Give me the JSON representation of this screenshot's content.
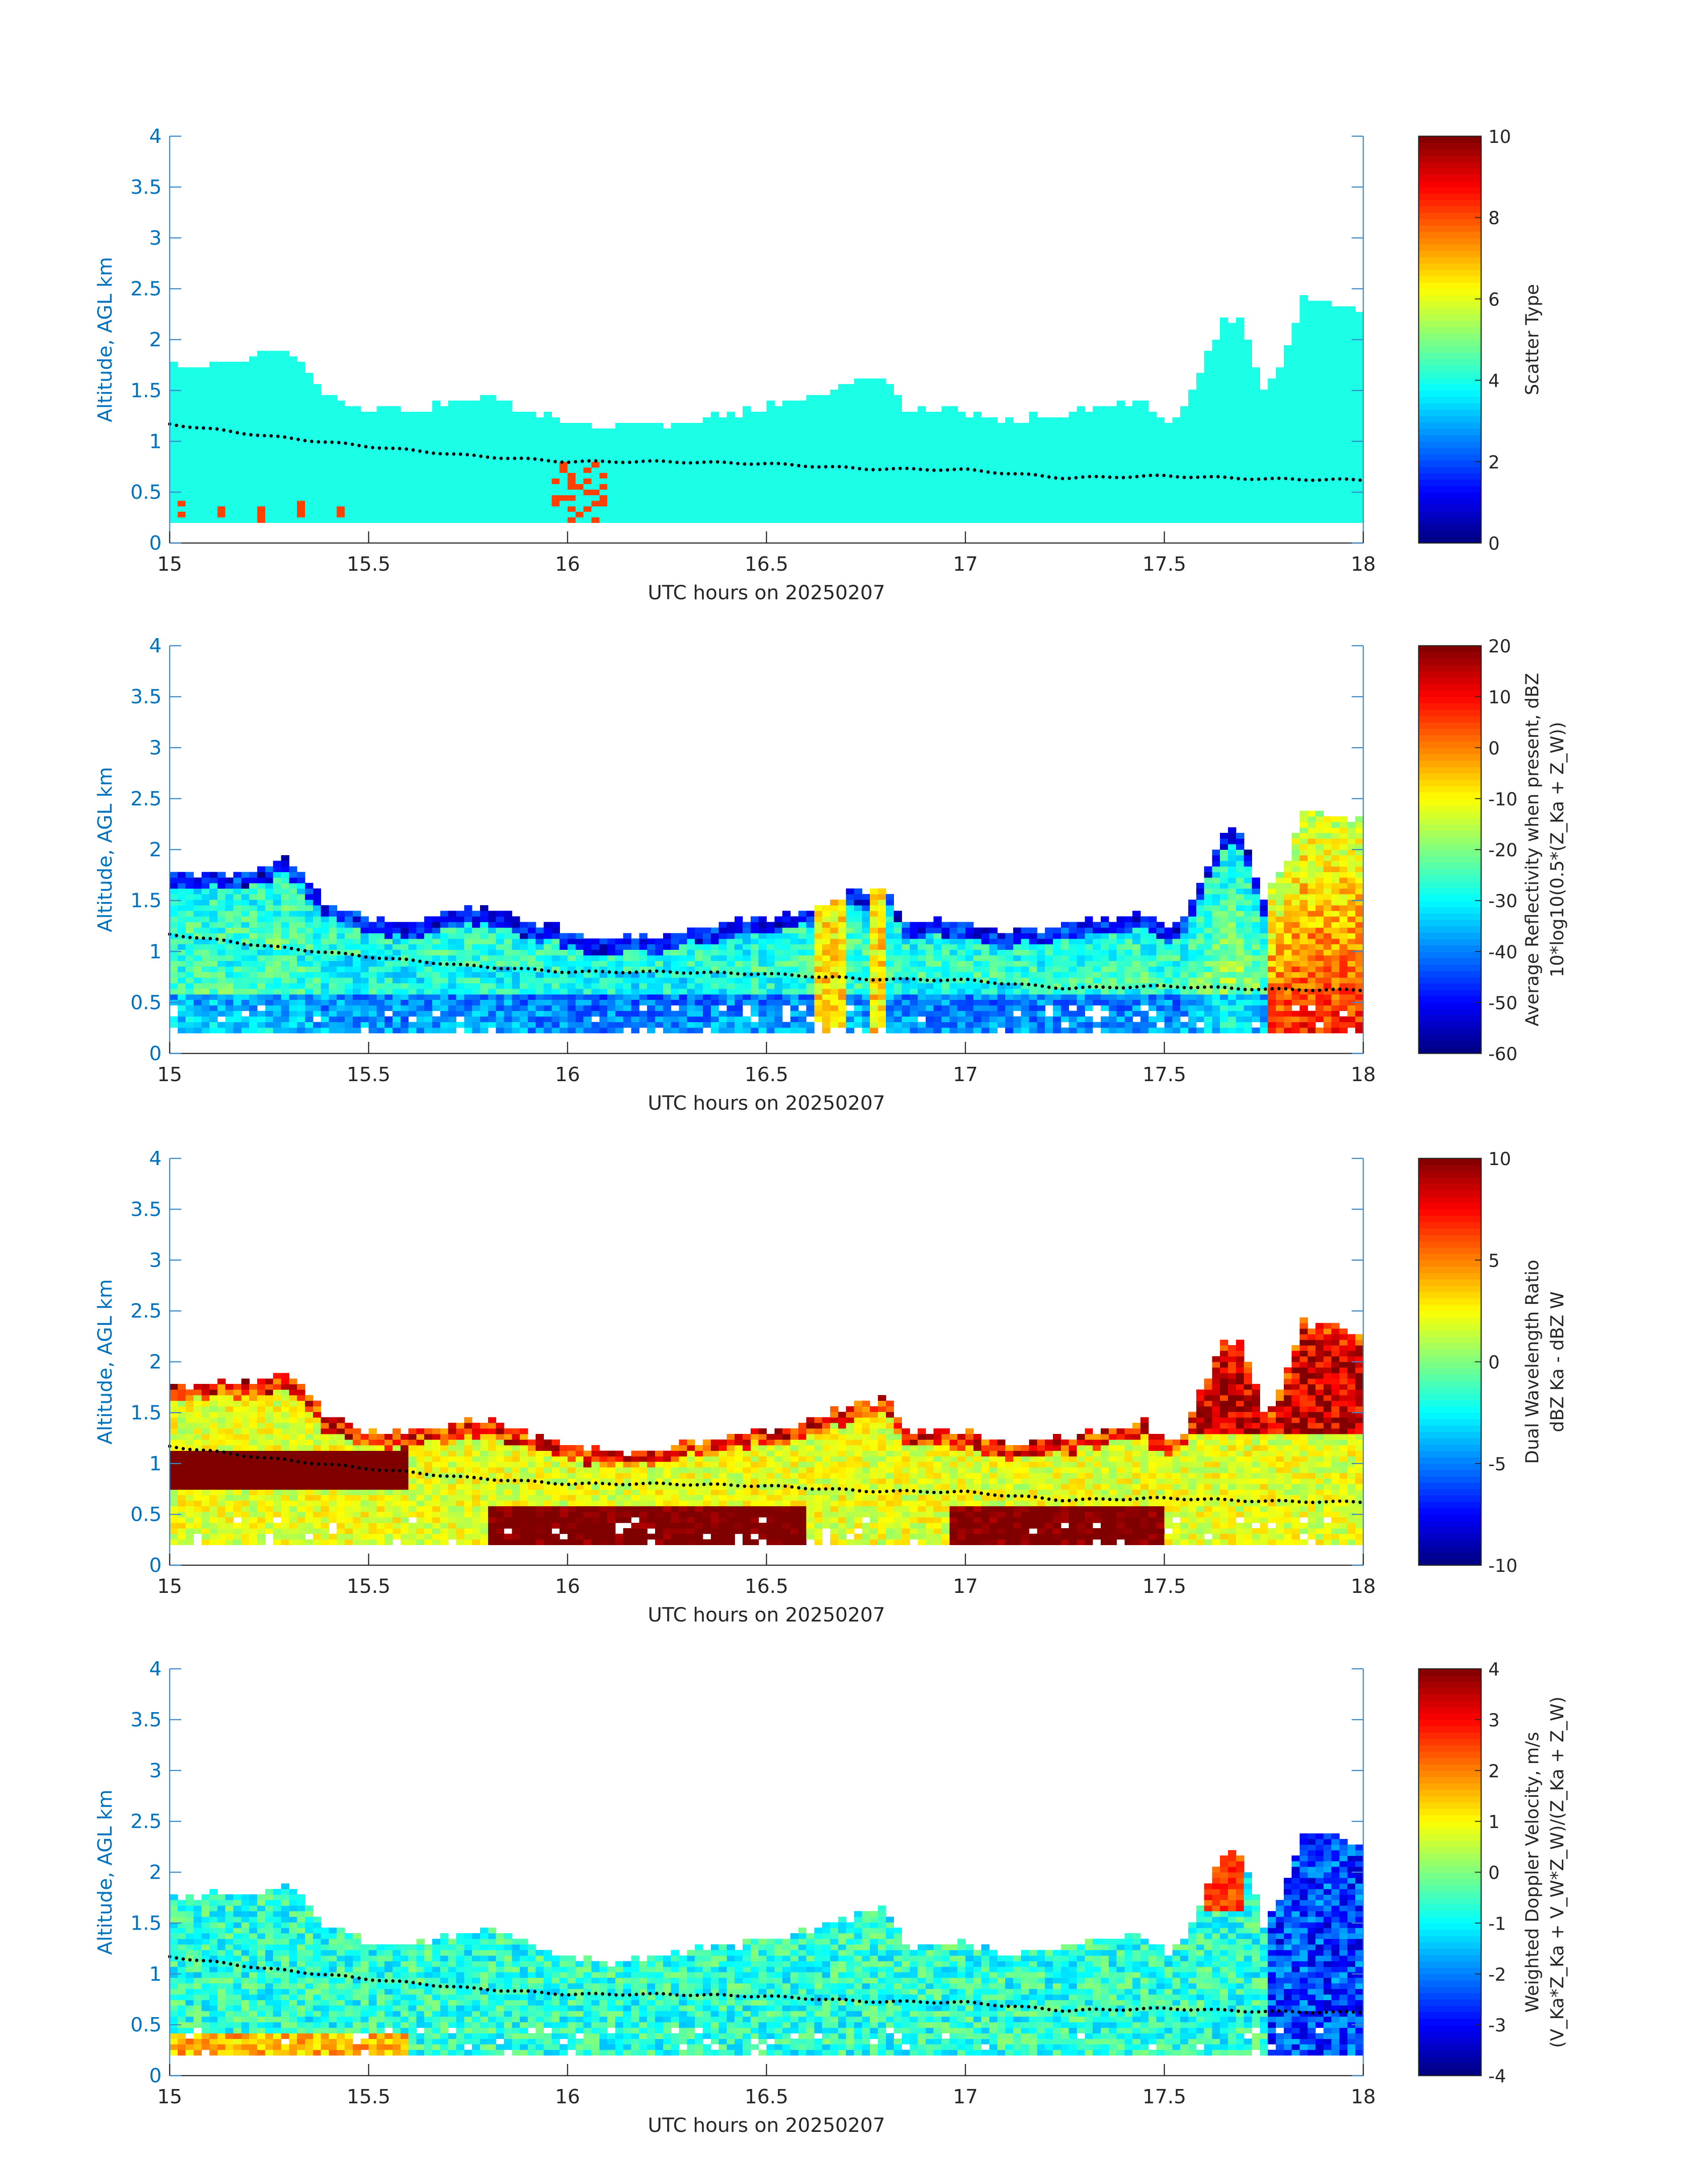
{
  "chart_data": [
    {
      "type": "heatmap",
      "panel": "scatter-type",
      "title": "",
      "xlabel": "UTC hours on 20250207",
      "ylabel": "Altitude, AGL km",
      "xlim": [
        15,
        18
      ],
      "ylim": [
        0,
        4
      ],
      "xticks": [
        "15",
        "15.5",
        "16",
        "16.5",
        "17",
        "17.5",
        "18"
      ],
      "yticks": [
        "0",
        "0.5",
        "1",
        "1.5",
        "2",
        "2.5",
        "3",
        "3.5",
        "4"
      ],
      "colorbar": {
        "label_lines": [
          "Scatter Type"
        ],
        "clim": [
          0,
          10
        ],
        "ticks": [
          "0",
          "2",
          "4",
          "6",
          "8",
          "10"
        ]
      },
      "echo_top_km": [
        [
          15.0,
          1.75
        ],
        [
          15.2,
          1.8
        ],
        [
          15.3,
          1.9
        ],
        [
          15.4,
          1.45
        ],
        [
          15.5,
          1.3
        ],
        [
          15.6,
          1.3
        ],
        [
          15.8,
          1.45
        ],
        [
          15.9,
          1.3
        ],
        [
          16.0,
          1.2
        ],
        [
          16.1,
          1.12
        ],
        [
          16.2,
          1.15
        ],
        [
          16.4,
          1.28
        ],
        [
          16.6,
          1.4
        ],
        [
          16.7,
          1.55
        ],
        [
          16.8,
          1.65
        ],
        [
          16.85,
          1.3
        ],
        [
          16.95,
          1.3
        ],
        [
          17.0,
          1.3
        ],
        [
          17.1,
          1.2
        ],
        [
          17.3,
          1.3
        ],
        [
          17.45,
          1.4
        ],
        [
          17.5,
          1.2
        ],
        [
          17.55,
          1.35
        ],
        [
          17.6,
          1.8
        ],
        [
          17.65,
          2.2
        ],
        [
          17.7,
          2.15
        ],
        [
          17.75,
          1.5
        ],
        [
          17.8,
          1.8
        ],
        [
          17.85,
          2.4
        ],
        [
          17.95,
          2.35
        ],
        [
          18.0,
          2.25
        ]
      ],
      "base_km": 0.2,
      "melting_layer_km": [
        [
          15.0,
          1.17
        ],
        [
          15.25,
          1.05
        ],
        [
          15.5,
          0.95
        ],
        [
          15.75,
          0.86
        ],
        [
          16.0,
          0.8
        ],
        [
          16.25,
          0.8
        ],
        [
          16.5,
          0.78
        ],
        [
          16.75,
          0.73
        ],
        [
          17.0,
          0.72
        ],
        [
          17.25,
          0.64
        ],
        [
          17.5,
          0.66
        ],
        [
          17.75,
          0.63
        ],
        [
          18.0,
          0.62
        ]
      ],
      "dominant_value": 4
    },
    {
      "type": "heatmap",
      "panel": "reflectivity",
      "title": "",
      "xlabel": "UTC hours on 20250207",
      "ylabel": "Altitude, AGL km",
      "xlim": [
        15,
        18
      ],
      "ylim": [
        0,
        4
      ],
      "xticks": [
        "15",
        "15.5",
        "16",
        "16.5",
        "17",
        "17.5",
        "18"
      ],
      "yticks": [
        "0",
        "0.5",
        "1",
        "1.5",
        "2",
        "2.5",
        "3",
        "3.5",
        "4"
      ],
      "colorbar": {
        "label_lines": [
          "Average Reflectivity when present, dBZ",
          "10*log10(0.5*(Z_Ka + Z_W))"
        ],
        "clim": [
          -60,
          20
        ],
        "ticks": [
          "-60",
          "-50",
          "-40",
          "-30",
          "-20",
          "-10",
          "0",
          "10",
          "20"
        ]
      }
    },
    {
      "type": "heatmap",
      "panel": "dual-wavelength-ratio",
      "title": "",
      "xlabel": "UTC hours on 20250207",
      "ylabel": "Altitude, AGL km",
      "xlim": [
        15,
        18
      ],
      "ylim": [
        0,
        4
      ],
      "xticks": [
        "15",
        "15.5",
        "16",
        "16.5",
        "17",
        "17.5",
        "18"
      ],
      "yticks": [
        "0",
        "0.5",
        "1",
        "1.5",
        "2",
        "2.5",
        "3",
        "3.5",
        "4"
      ],
      "colorbar": {
        "label_lines": [
          "Dual Wavelength Ratio",
          "dBZ Ka - dBZ W"
        ],
        "clim": [
          -10,
          10
        ],
        "ticks": [
          "-10",
          "-5",
          "0",
          "5",
          "10"
        ]
      }
    },
    {
      "type": "heatmap",
      "panel": "doppler-velocity",
      "title": "",
      "xlabel": "UTC hours on 20250207",
      "ylabel": "Altitude, AGL km",
      "xlim": [
        15,
        18
      ],
      "ylim": [
        0,
        4
      ],
      "xticks": [
        "15",
        "15.5",
        "16",
        "16.5",
        "17",
        "17.5",
        "18"
      ],
      "yticks": [
        "0",
        "0.5",
        "1",
        "1.5",
        "2",
        "2.5",
        "3",
        "3.5",
        "4"
      ],
      "colorbar": {
        "label_lines": [
          "Weighted Doppler Velocity, m/s",
          "(V_Ka*Z_Ka + V_W*Z_W)/(Z_Ka + Z_W)"
        ],
        "clim": [
          -4,
          4
        ],
        "ticks": [
          "-4",
          "-3",
          "-2",
          "-1",
          "0",
          "1",
          "2",
          "3",
          "4"
        ]
      }
    }
  ]
}
